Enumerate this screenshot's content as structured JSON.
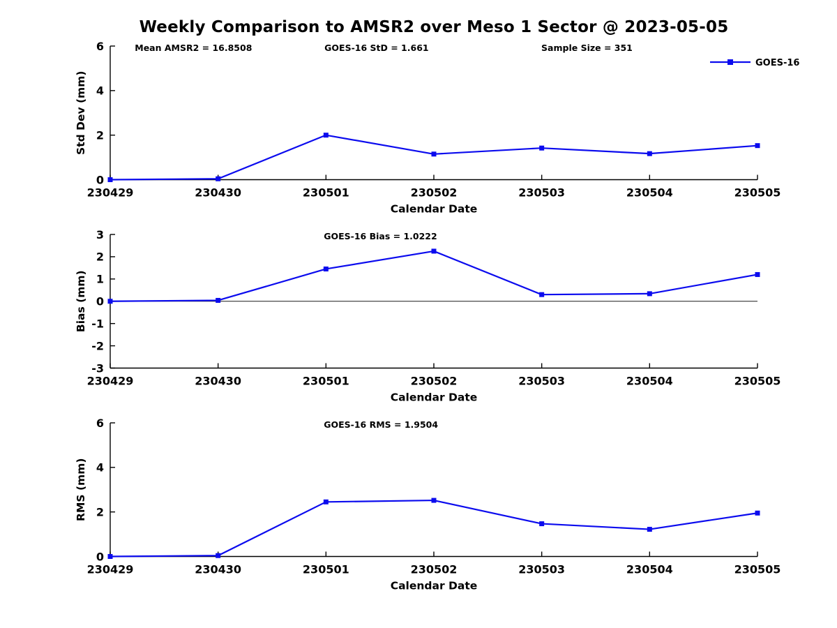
{
  "figure": {
    "title": "Weekly Comparison to AMSR2 over Meso 1 Sector @ 2023-05-05",
    "background_color": "#ffffff",
    "line_color": "#0b0bee",
    "text_color": "#000000",
    "zero_line_color": "#1a1a1a"
  },
  "chart_data": [
    {
      "id": "stddev",
      "type": "line",
      "title": "",
      "xlabel": "Calendar Date",
      "ylabel": "Std Dev (mm)",
      "ylim": [
        0,
        6
      ],
      "yticks": [
        0,
        2,
        4,
        6
      ],
      "grid": false,
      "zero_line": false,
      "categories": [
        "230429",
        "230430",
        "230501",
        "230502",
        "230503",
        "230504",
        "230505"
      ],
      "series": [
        {
          "name": "GOES-16",
          "values": [
            0,
            0.04,
            2.0,
            1.15,
            1.42,
            1.17,
            1.53
          ]
        }
      ],
      "annotations": [
        {
          "text": "Mean AMSR2 = 16.8508",
          "xfrac": 0.038
        },
        {
          "text": "GOES-16 StD = 1.661",
          "xfrac": 0.331
        },
        {
          "text": "Sample Size = 351",
          "xfrac": 0.666
        }
      ],
      "legend": {
        "label": "GOES-16",
        "position": "top-right"
      }
    },
    {
      "id": "bias",
      "type": "line",
      "title": "",
      "xlabel": "Calendar Date",
      "ylabel": "Bias (mm)",
      "ylim": [
        -3,
        3
      ],
      "yticks": [
        -3,
        -2,
        -1,
        0,
        1,
        2,
        3
      ],
      "grid": false,
      "zero_line": true,
      "categories": [
        "230429",
        "230430",
        "230501",
        "230502",
        "230503",
        "230504",
        "230505"
      ],
      "series": [
        {
          "name": "GOES-16",
          "values": [
            0,
            0.04,
            1.45,
            2.25,
            0.3,
            0.34,
            1.2
          ]
        }
      ],
      "annotations": [
        {
          "text": "GOES-16 Bias  = 1.0222",
          "xfrac": 0.33
        }
      ],
      "legend": null
    },
    {
      "id": "rms",
      "type": "line",
      "title": "",
      "xlabel": "Calendar Date",
      "ylabel": "RMS (mm)",
      "ylim": [
        0,
        6
      ],
      "yticks": [
        0,
        2,
        4,
        6
      ],
      "grid": false,
      "zero_line": false,
      "categories": [
        "230429",
        "230430",
        "230501",
        "230502",
        "230503",
        "230504",
        "230505"
      ],
      "series": [
        {
          "name": "GOES-16",
          "values": [
            0,
            0.04,
            2.45,
            2.52,
            1.47,
            1.22,
            1.95
          ]
        }
      ],
      "annotations": [
        {
          "text": "GOES-16 RMS = 1.9504",
          "xfrac": 0.33
        }
      ],
      "legend": null
    }
  ]
}
